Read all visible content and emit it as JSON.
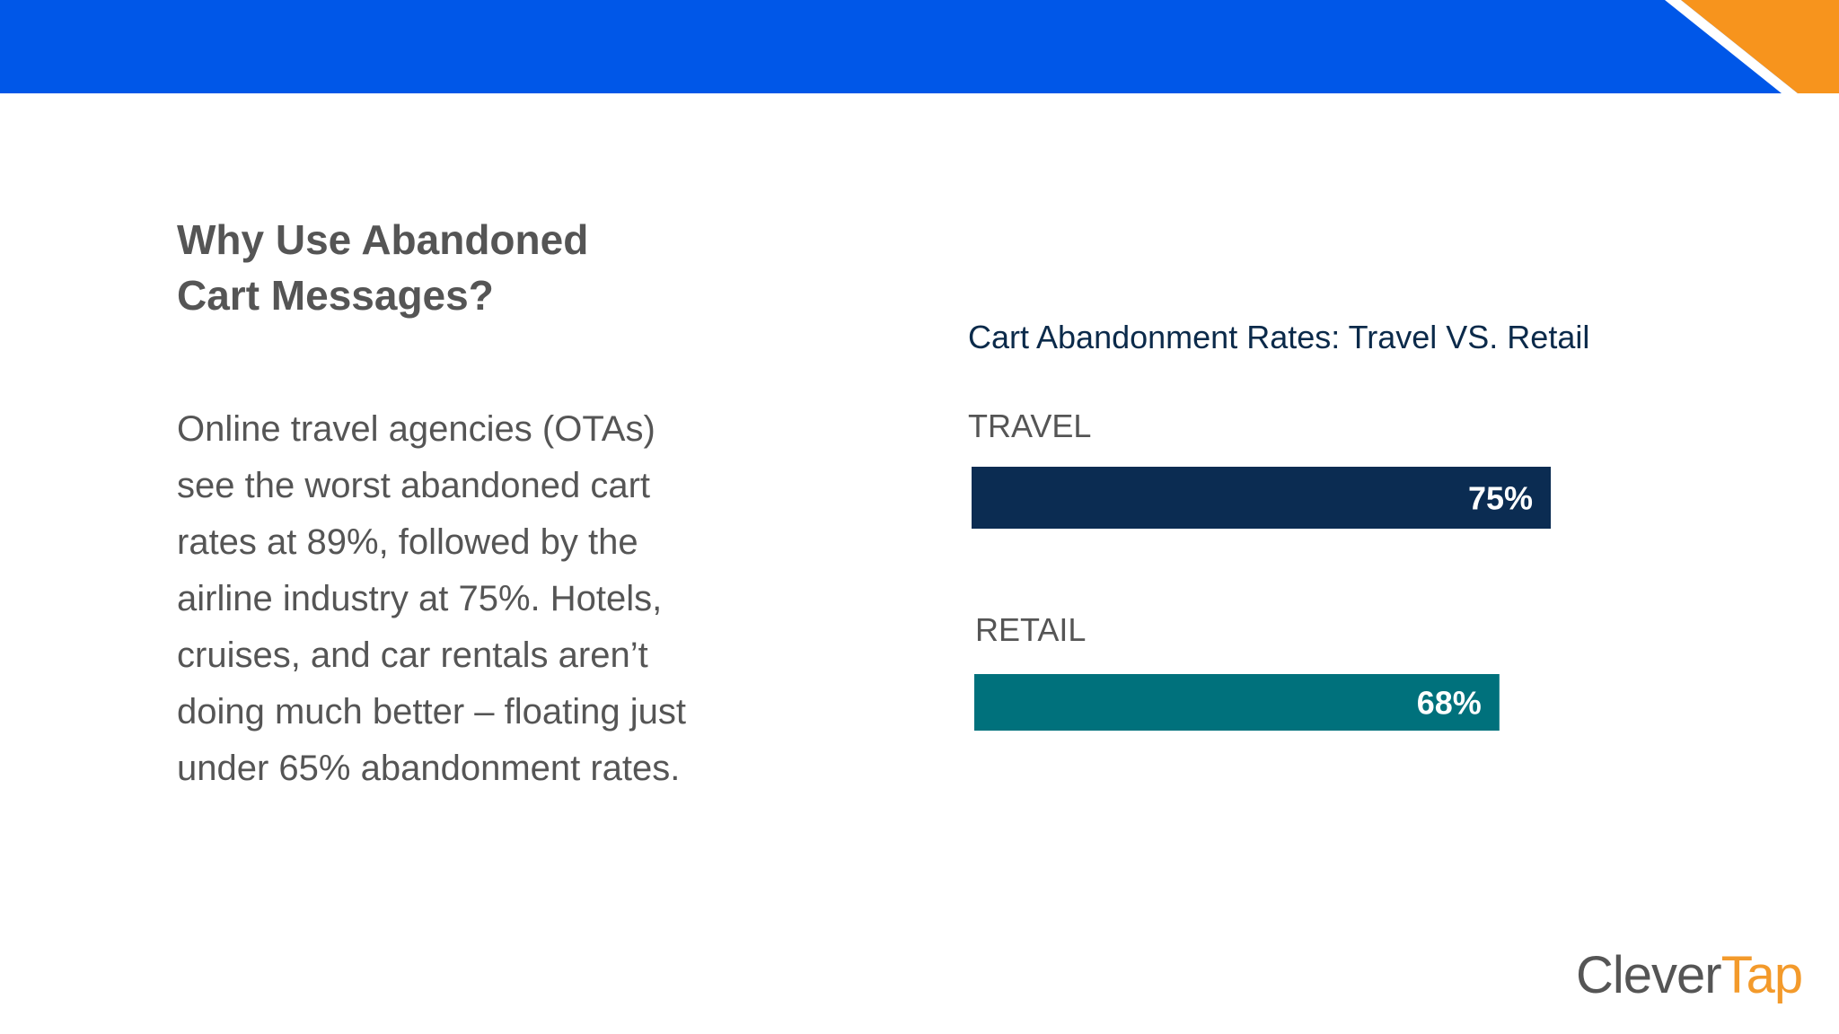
{
  "colors": {
    "banner_blue": "#0057e8",
    "banner_orange": "#f7941d",
    "travel_bar": "#0b2c52",
    "retail_bar": "#00717c"
  },
  "heading": {
    "line1": "Why Use Abandoned",
    "line2": "Cart Messages?"
  },
  "body": {
    "lines": [
      "Online travel agencies (OTAs)",
      "see the worst abandoned cart",
      "rates at 89%, followed by the",
      "airline industry at 75%. Hotels,",
      "cruises, and car rentals aren’t",
      "doing much better – floating just",
      "under 65% abandonment rates."
    ]
  },
  "logo": {
    "part1": "Clever",
    "part2": "Tap"
  },
  "chart_data": {
    "type": "bar",
    "orientation": "horizontal",
    "title": "Cart Abandonment Rates: Travel VS. Retail",
    "categories": [
      "TRAVEL",
      "RETAIL"
    ],
    "values": [
      75,
      68
    ],
    "value_labels": [
      "75%",
      "68%"
    ],
    "xlim": [
      0,
      100
    ],
    "grid": false,
    "legend": "none"
  }
}
